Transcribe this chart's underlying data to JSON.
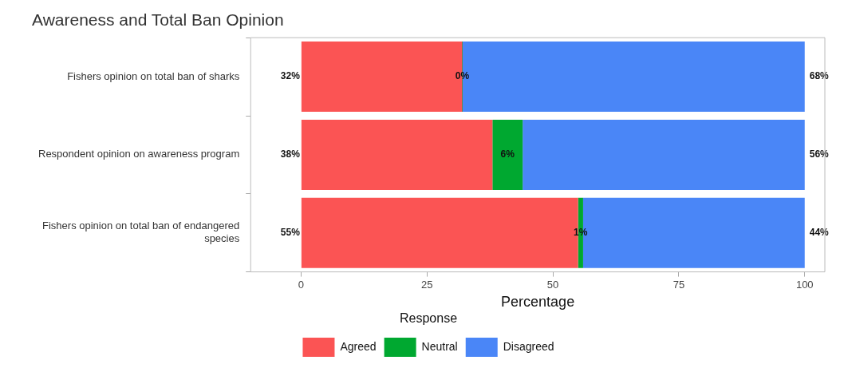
{
  "chart_data": {
    "type": "bar",
    "orientation": "horizontal",
    "stacked": true,
    "title": "Awareness and Total Ban Opinion",
    "xlabel": "Percentage",
    "legend_title": "Response",
    "legend": "bottom",
    "grid": false,
    "categories": [
      "Fishers opinion on total ban of sharks",
      "Respondent opinion on awareness program",
      "Fishers opinion on total ban of endangered species"
    ],
    "series": [
      {
        "name": "Agreed",
        "color": "#fb5454",
        "values": [
          32,
          38,
          55
        ],
        "value_labels": [
          "32%",
          "38%",
          "55%"
        ]
      },
      {
        "name": "Neutral",
        "color": "#00a830",
        "values": [
          0,
          6,
          1
        ],
        "value_labels": [
          "0%",
          "6%",
          "1%"
        ]
      },
      {
        "name": "Disagreed",
        "color": "#4a86f7",
        "values": [
          68,
          56,
          44
        ],
        "value_labels": [
          "68%",
          "56%",
          "44%"
        ]
      }
    ],
    "xlim": [
      -10,
      104
    ],
    "xticks": [
      0,
      25,
      50,
      75,
      100
    ]
  }
}
